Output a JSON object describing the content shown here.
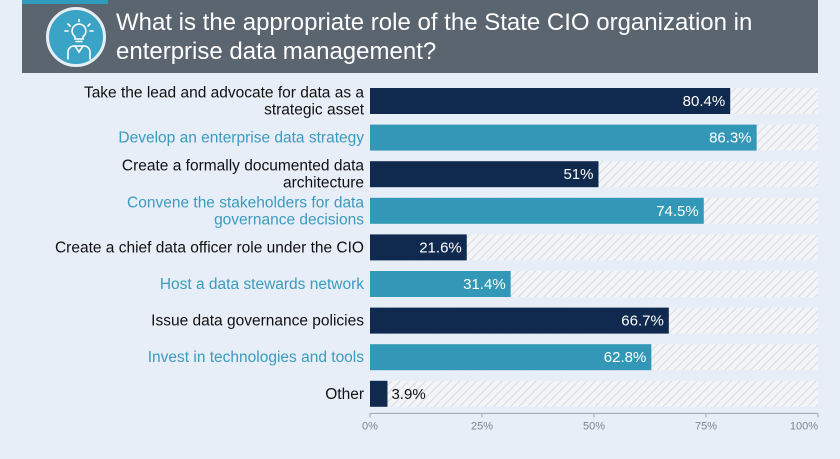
{
  "header": {
    "title": "What is the appropriate role of the State CIO organization in enterprise data management?",
    "icon": "lightbulb-person-icon"
  },
  "colors": {
    "dark_bar": "#102a4f",
    "light_bar": "#3398b7",
    "dark_text": "#111111",
    "light_text": "#3a9bc0",
    "header_bg": "#5a6570"
  },
  "chart_data": {
    "type": "bar",
    "orientation": "horizontal",
    "categories": [
      [
        "Take the lead and advocate for data as a",
        "strategic asset"
      ],
      [
        "Develop an enterprise data strategy"
      ],
      [
        "Create a formally documented data",
        "architecture"
      ],
      [
        "Convene the stakeholders for data",
        "governance decisions"
      ],
      [
        "Create a chief data officer role under the CIO"
      ],
      [
        "Host a data stewards network"
      ],
      [
        "Issue data governance policies"
      ],
      [
        "Invest in technologies and tools"
      ],
      [
        "Other"
      ]
    ],
    "values": [
      80.4,
      86.3,
      51,
      74.5,
      21.6,
      31.4,
      66.7,
      62.8,
      3.9
    ],
    "value_labels": [
      "80.4%",
      "86.3%",
      "51%",
      "74.5%",
      "21.6%",
      "31.4%",
      "66.7%",
      "62.8%",
      "3.9%"
    ],
    "styles": [
      "dark",
      "light",
      "dark",
      "light",
      "dark",
      "light",
      "dark",
      "light",
      "dark"
    ],
    "xlim": [
      0,
      100
    ],
    "xticks": [
      "0%",
      "25%",
      "50%",
      "75%",
      "100%"
    ],
    "grid": false,
    "legend": "none"
  }
}
